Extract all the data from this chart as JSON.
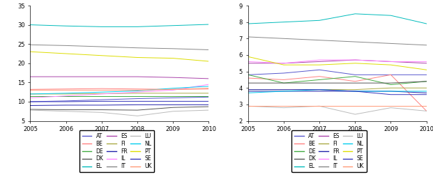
{
  "years": [
    2005,
    2006,
    2007,
    2008,
    2009,
    2010
  ],
  "countries": [
    "AT",
    "BE",
    "DE",
    "DK",
    "EL",
    "ES",
    "FI",
    "FR",
    "IL",
    "IT",
    "LU",
    "NL",
    "PT",
    "SE",
    "UK"
  ],
  "colors": {
    "AT": "#5555cc",
    "BE": "#ff8080",
    "DE": "#40aa40",
    "DK": "#555555",
    "EL": "#00bbbb",
    "ES": "#aa44aa",
    "FI": "#aaaa44",
    "FR": "#2222aa",
    "IL": "#ff88ff",
    "IT": "#888888",
    "LU": "#bbbbbb",
    "NL": "#00ccee",
    "PT": "#dddd00",
    "SE": "#3333bb",
    "UK": "#ff9977"
  },
  "left_data": {
    "AT": [
      10.0,
      10.2,
      10.5,
      10.8,
      11.0,
      11.2
    ],
    "BE": [
      13.2,
      13.3,
      13.4,
      13.3,
      13.2,
      13.3
    ],
    "DE": [
      11.5,
      11.5,
      11.5,
      11.5,
      11.5,
      11.5
    ],
    "DK": [
      8.0,
      7.9,
      7.9,
      7.8,
      8.5,
      8.7
    ],
    "EL": [
      30.0,
      29.7,
      29.5,
      29.5,
      29.8,
      30.1
    ],
    "ES": [
      16.5,
      16.5,
      16.5,
      16.5,
      16.3,
      16.0
    ],
    "FI": [
      12.0,
      12.0,
      12.1,
      12.2,
      12.2,
      12.2
    ],
    "FR": [
      9.0,
      9.1,
      9.1,
      9.2,
      9.2,
      9.2
    ],
    "IL": [
      11.0,
      11.5,
      12.0,
      12.5,
      13.0,
      14.5
    ],
    "IT": [
      24.8,
      24.6,
      24.3,
      24.0,
      23.8,
      23.5
    ],
    "LU": [
      7.8,
      7.5,
      7.2,
      6.3,
      7.5,
      7.8
    ],
    "NL": [
      12.0,
      12.2,
      12.5,
      12.8,
      13.5,
      14.0
    ],
    "PT": [
      23.0,
      22.5,
      22.0,
      21.5,
      21.3,
      20.5
    ],
    "SE": [
      10.0,
      10.0,
      10.1,
      10.1,
      10.1,
      10.1
    ],
    "UK": [
      13.0,
      13.0,
      13.0,
      13.0,
      13.2,
      13.5
    ]
  },
  "right_data": {
    "AT": [
      4.8,
      4.9,
      5.1,
      4.8,
      4.8,
      4.8
    ],
    "BE": [
      4.6,
      4.5,
      4.7,
      4.4,
      4.8,
      2.6
    ],
    "DE": [
      4.8,
      4.3,
      4.5,
      4.7,
      4.2,
      4.4
    ],
    "DK": [
      4.3,
      4.3,
      4.3,
      4.3,
      4.3,
      4.4
    ],
    "EL": [
      7.9,
      8.0,
      8.1,
      8.5,
      8.4,
      7.9
    ],
    "ES": [
      5.5,
      5.5,
      5.6,
      5.7,
      5.6,
      5.5
    ],
    "FI": [
      3.9,
      3.9,
      3.9,
      3.9,
      4.0,
      4.0
    ],
    "FR": [
      3.8,
      3.8,
      3.8,
      3.8,
      3.8,
      3.7
    ],
    "IL": [
      5.6,
      5.5,
      5.7,
      5.7,
      5.6,
      5.6
    ],
    "IT": [
      7.1,
      7.0,
      6.9,
      6.8,
      6.7,
      6.6
    ],
    "LU": [
      2.9,
      2.8,
      2.9,
      2.4,
      2.8,
      2.6
    ],
    "NL": [
      3.7,
      3.8,
      3.9,
      3.8,
      3.8,
      3.8
    ],
    "PT": [
      5.9,
      5.4,
      5.4,
      5.5,
      5.4,
      5.1
    ],
    "SE": [
      3.9,
      3.9,
      3.9,
      3.8,
      3.6,
      3.6
    ],
    "UK": [
      2.9,
      2.9,
      2.9,
      2.9,
      2.9,
      2.9
    ]
  },
  "left_ylim": [
    5,
    35
  ],
  "right_ylim": [
    2,
    9
  ],
  "left_yticks": [
    5,
    10,
    15,
    20,
    25,
    30,
    35
  ],
  "right_yticks": [
    2,
    3,
    4,
    5,
    6,
    7,
    8,
    9
  ],
  "legend_col1": [
    "AT",
    "DK",
    "FI",
    "IT",
    "PT"
  ],
  "legend_col2": [
    "BE",
    "EL",
    "FR",
    "LU",
    "SE"
  ],
  "legend_col3": [
    "DE",
    "ES",
    "IL",
    "NL",
    "UK"
  ]
}
